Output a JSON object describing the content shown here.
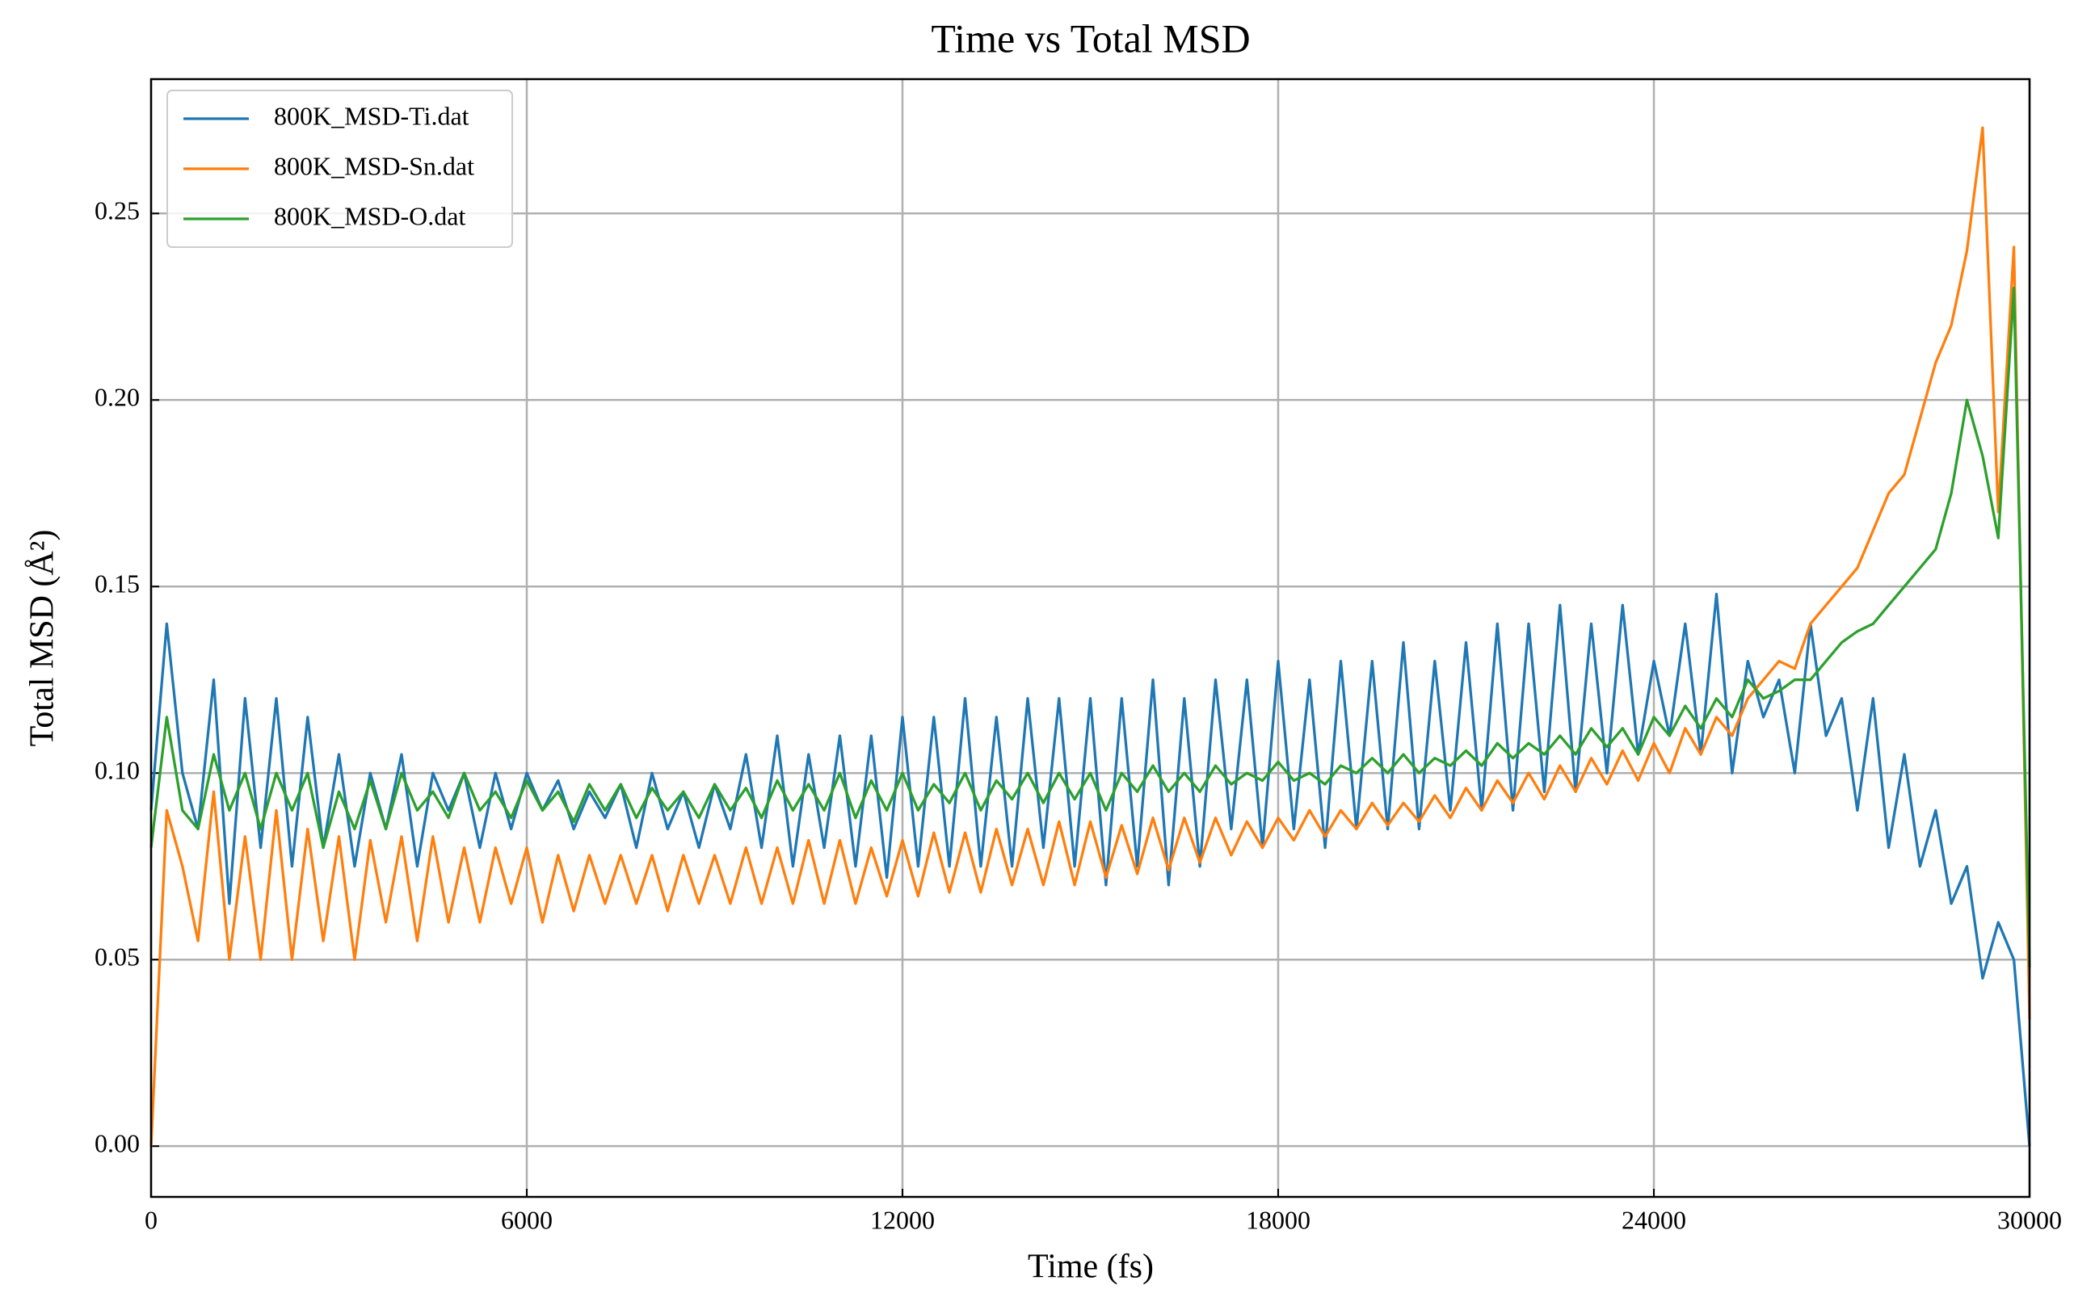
{
  "chart_data": {
    "type": "line",
    "title": "Time vs Total MSD",
    "xlabel": "Time (fs)",
    "ylabel": "Total MSD (Å²)",
    "x": [
      0,
      250,
      500,
      750,
      1000,
      1250,
      1500,
      1750,
      2000,
      2250,
      2500,
      2750,
      3000,
      3250,
      3500,
      3750,
      4000,
      4250,
      4500,
      4750,
      5000,
      5250,
      5500,
      5750,
      6000,
      6250,
      6500,
      6750,
      7000,
      7250,
      7500,
      7750,
      8000,
      8250,
      8500,
      8750,
      9000,
      9250,
      9500,
      9750,
      10000,
      10250,
      10500,
      10750,
      11000,
      11250,
      11500,
      11750,
      12000,
      12250,
      12500,
      12750,
      13000,
      13250,
      13500,
      13750,
      14000,
      14250,
      14500,
      14750,
      15000,
      15250,
      15500,
      15750,
      16000,
      16250,
      16500,
      16750,
      17000,
      17250,
      17500,
      17750,
      18000,
      18250,
      18500,
      18750,
      19000,
      19250,
      19500,
      19750,
      20000,
      20250,
      20500,
      20750,
      21000,
      21250,
      21500,
      21750,
      22000,
      22250,
      22500,
      22750,
      23000,
      23250,
      23500,
      23750,
      24000,
      24250,
      24500,
      24750,
      25000,
      25250,
      25500,
      25750,
      26000,
      26250,
      26500,
      26750,
      27000,
      27250,
      27500,
      27750,
      28000,
      28250,
      28500,
      28750,
      29000,
      29250,
      29500,
      29750,
      30000
    ],
    "series": [
      {
        "name": "800K_MSD-Ti.dat",
        "color": "#1f77b4",
        "values": [
          0.09,
          0.14,
          0.1,
          0.085,
          0.125,
          0.065,
          0.12,
          0.08,
          0.12,
          0.075,
          0.115,
          0.08,
          0.105,
          0.075,
          0.1,
          0.085,
          0.105,
          0.075,
          0.1,
          0.09,
          0.1,
          0.08,
          0.1,
          0.085,
          0.1,
          0.09,
          0.098,
          0.085,
          0.095,
          0.088,
          0.097,
          0.08,
          0.1,
          0.085,
          0.095,
          0.08,
          0.097,
          0.085,
          0.105,
          0.08,
          0.11,
          0.075,
          0.105,
          0.08,
          0.11,
          0.075,
          0.11,
          0.072,
          0.115,
          0.075,
          0.115,
          0.075,
          0.12,
          0.075,
          0.115,
          0.075,
          0.12,
          0.08,
          0.12,
          0.075,
          0.12,
          0.07,
          0.12,
          0.075,
          0.125,
          0.07,
          0.12,
          0.075,
          0.125,
          0.085,
          0.125,
          0.08,
          0.13,
          0.085,
          0.125,
          0.08,
          0.13,
          0.085,
          0.13,
          0.085,
          0.135,
          0.085,
          0.13,
          0.09,
          0.135,
          0.09,
          0.14,
          0.09,
          0.14,
          0.095,
          0.145,
          0.095,
          0.14,
          0.1,
          0.145,
          0.105,
          0.13,
          0.11,
          0.14,
          0.105,
          0.148,
          0.1,
          0.13,
          0.115,
          0.125,
          0.1,
          0.14,
          0.11,
          0.12,
          0.09,
          0.12,
          0.08,
          0.105,
          0.075,
          0.09,
          0.065,
          0.075,
          0.045,
          0.06,
          0.05,
          0.0
        ]
      },
      {
        "name": "800K_MSD-Sn.dat",
        "color": "#ff7f0e",
        "values": [
          0.0,
          0.09,
          0.075,
          0.055,
          0.095,
          0.05,
          0.083,
          0.05,
          0.09,
          0.05,
          0.085,
          0.055,
          0.083,
          0.05,
          0.082,
          0.06,
          0.083,
          0.055,
          0.083,
          0.06,
          0.08,
          0.06,
          0.08,
          0.065,
          0.08,
          0.06,
          0.078,
          0.063,
          0.078,
          0.065,
          0.078,
          0.065,
          0.078,
          0.063,
          0.078,
          0.065,
          0.078,
          0.065,
          0.08,
          0.065,
          0.08,
          0.065,
          0.082,
          0.065,
          0.082,
          0.065,
          0.08,
          0.067,
          0.082,
          0.067,
          0.084,
          0.068,
          0.084,
          0.068,
          0.085,
          0.07,
          0.085,
          0.07,
          0.087,
          0.07,
          0.087,
          0.072,
          0.086,
          0.073,
          0.088,
          0.074,
          0.088,
          0.076,
          0.088,
          0.078,
          0.087,
          0.08,
          0.088,
          0.082,
          0.09,
          0.083,
          0.09,
          0.085,
          0.092,
          0.086,
          0.092,
          0.087,
          0.094,
          0.088,
          0.096,
          0.09,
          0.098,
          0.092,
          0.1,
          0.093,
          0.102,
          0.095,
          0.104,
          0.097,
          0.106,
          0.098,
          0.108,
          0.1,
          0.112,
          0.105,
          0.115,
          0.11,
          0.12,
          0.125,
          0.13,
          0.128,
          0.14,
          0.145,
          0.15,
          0.155,
          0.165,
          0.175,
          0.18,
          0.195,
          0.21,
          0.22,
          0.24,
          0.273,
          0.17,
          0.241,
          0.034
        ]
      },
      {
        "name": "800K_MSD-O.dat",
        "color": "#2ca02c",
        "values": [
          0.08,
          0.115,
          0.09,
          0.085,
          0.105,
          0.09,
          0.1,
          0.085,
          0.1,
          0.09,
          0.1,
          0.08,
          0.095,
          0.085,
          0.098,
          0.085,
          0.1,
          0.09,
          0.095,
          0.088,
          0.1,
          0.09,
          0.095,
          0.088,
          0.098,
          0.09,
          0.095,
          0.087,
          0.097,
          0.09,
          0.097,
          0.088,
          0.096,
          0.09,
          0.095,
          0.088,
          0.097,
          0.09,
          0.096,
          0.088,
          0.098,
          0.09,
          0.097,
          0.09,
          0.1,
          0.088,
          0.098,
          0.09,
          0.1,
          0.09,
          0.097,
          0.092,
          0.1,
          0.09,
          0.098,
          0.093,
          0.1,
          0.092,
          0.1,
          0.093,
          0.1,
          0.09,
          0.1,
          0.095,
          0.102,
          0.095,
          0.1,
          0.095,
          0.102,
          0.097,
          0.1,
          0.098,
          0.103,
          0.098,
          0.1,
          0.097,
          0.102,
          0.1,
          0.104,
          0.1,
          0.105,
          0.1,
          0.104,
          0.102,
          0.106,
          0.102,
          0.108,
          0.104,
          0.108,
          0.105,
          0.11,
          0.105,
          0.112,
          0.107,
          0.112,
          0.105,
          0.115,
          0.11,
          0.118,
          0.112,
          0.12,
          0.115,
          0.125,
          0.12,
          0.122,
          0.125,
          0.125,
          0.13,
          0.135,
          0.138,
          0.14,
          0.145,
          0.15,
          0.155,
          0.16,
          0.175,
          0.2,
          0.185,
          0.163,
          0.23,
          0.048
        ]
      }
    ],
    "xlim": [
      0,
      30000
    ],
    "ylim": [
      -0.0136,
      0.286
    ],
    "xticks": [
      0,
      6000,
      12000,
      18000,
      24000,
      30000
    ],
    "yticks": [
      {
        "value": 0,
        "label": "0.00"
      },
      {
        "value": 0.05,
        "label": "0.05"
      },
      {
        "value": 0.1,
        "label": "0.10"
      },
      {
        "value": 0.15,
        "label": "0.15"
      },
      {
        "value": 0.2,
        "label": "0.20"
      },
      {
        "value": 0.25,
        "label": "0.25"
      }
    ],
    "grid": true,
    "legend": "upper left"
  }
}
